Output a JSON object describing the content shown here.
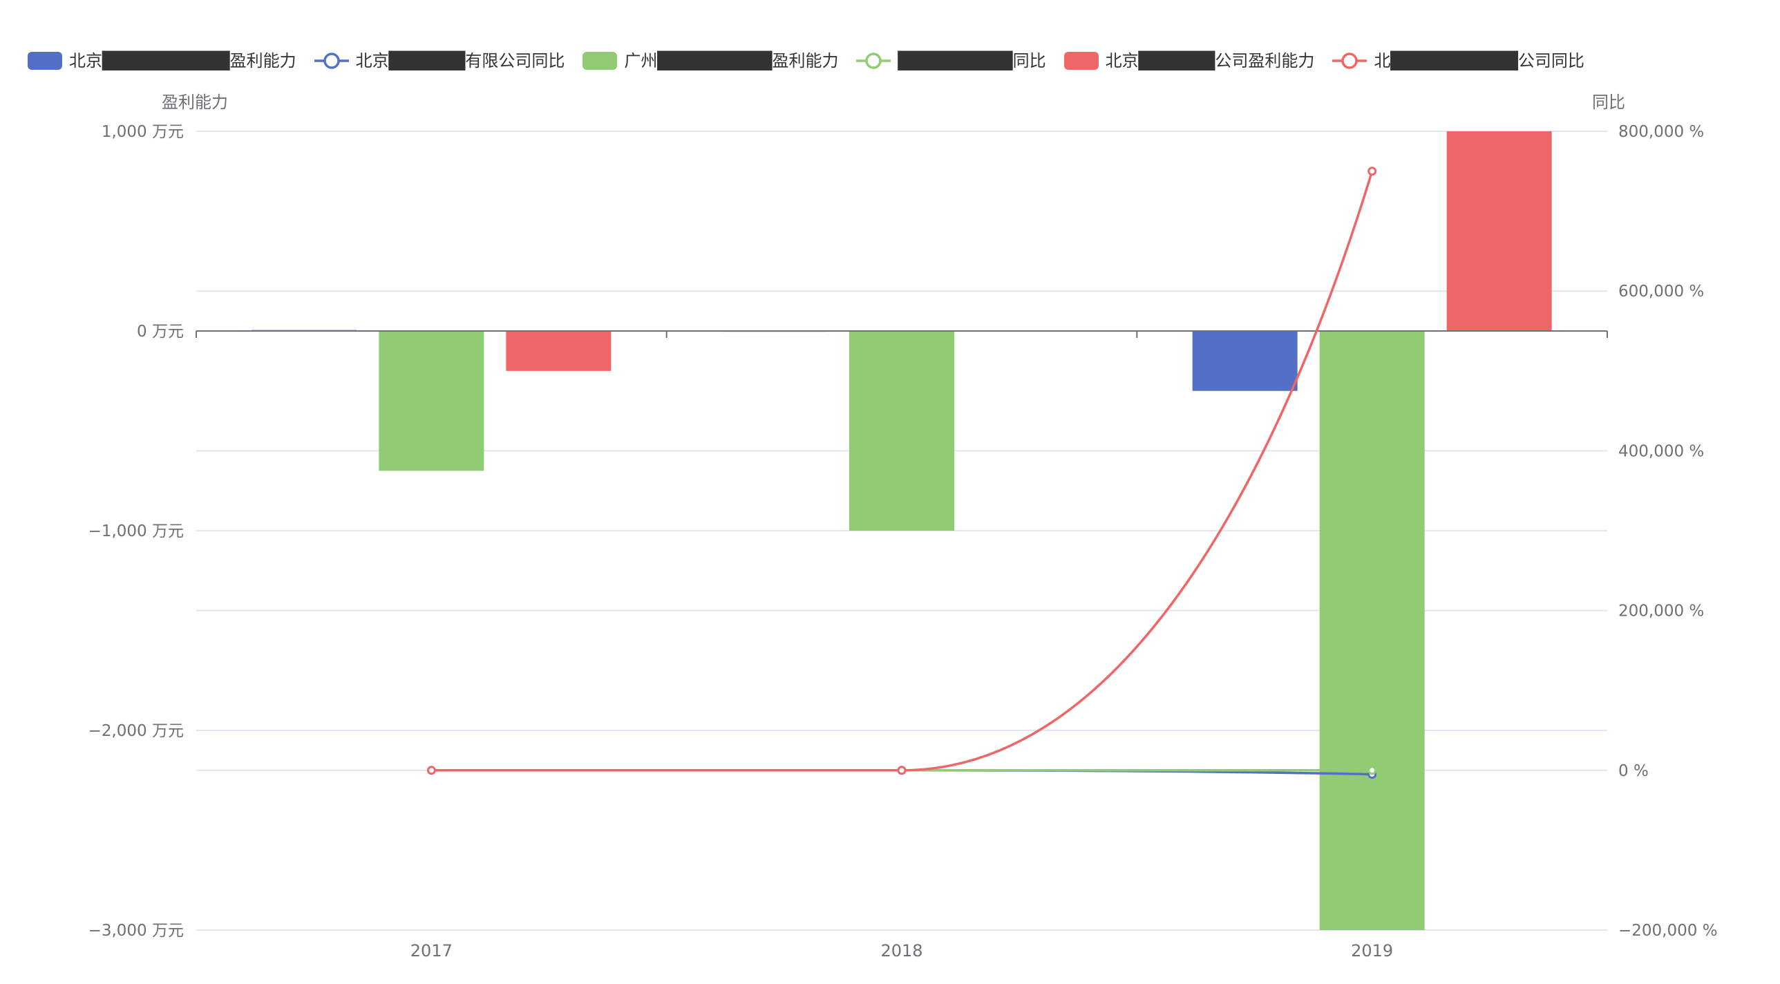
{
  "legend": [
    {
      "label": "北京██████████盈利能力",
      "type": "bar",
      "color": "#5470c6"
    },
    {
      "label": "北京██████有限公司同比",
      "type": "line",
      "color": "#5470c6"
    },
    {
      "label": "广州█████████盈利能力",
      "type": "bar",
      "color": "#91cc75"
    },
    {
      "label": "█████████同比",
      "type": "line",
      "color": "#91cc75"
    },
    {
      "label": "北京██████公司盈利能力",
      "type": "bar",
      "color": "#ee6666"
    },
    {
      "label": "北██████████公司同比",
      "type": "line",
      "color": "#ee6666"
    }
  ],
  "chart_data": {
    "type": "bar",
    "categories": [
      "2017",
      "2018",
      "2019"
    ],
    "y_left": {
      "name": "盈利能力",
      "unit": "万元",
      "ticks": [
        1000,
        0,
        -1000,
        -2000,
        -3000
      ],
      "tick_labels": [
        "1,000 万元",
        "0 万元",
        "−1,000 万元",
        "−2,000 万元",
        "−3,000 万元"
      ],
      "ylim": [
        -3000,
        1000
      ]
    },
    "y_right": {
      "name": "同比",
      "unit": "%",
      "ticks": [
        800000,
        600000,
        400000,
        200000,
        0,
        -200000
      ],
      "tick_labels": [
        "800,000 %",
        "600,000 %",
        "400,000 %",
        "200,000 %",
        "0 %",
        "−200,000 %"
      ],
      "ylim": [
        -200000,
        800000
      ]
    },
    "bar_series": [
      {
        "legend_index": 0,
        "color": "#5470c6",
        "values": [
          5,
          3,
          -300
        ]
      },
      {
        "legend_index": 2,
        "color": "#91cc75",
        "values": [
          -700,
          -1000,
          -3000
        ]
      },
      {
        "legend_index": 4,
        "color": "#ee6666",
        "values": [
          -200,
          0,
          1000
        ]
      }
    ],
    "line_series": [
      {
        "legend_index": 1,
        "color": "#5470c6",
        "values": [
          null,
          0,
          -5000
        ]
      },
      {
        "legend_index": 3,
        "color": "#91cc75",
        "values": [
          null,
          0,
          0
        ]
      },
      {
        "legend_index": 5,
        "color": "#ee6666",
        "values": [
          0,
          0,
          750000
        ]
      }
    ],
    "grid": true,
    "legend_position": "top"
  }
}
